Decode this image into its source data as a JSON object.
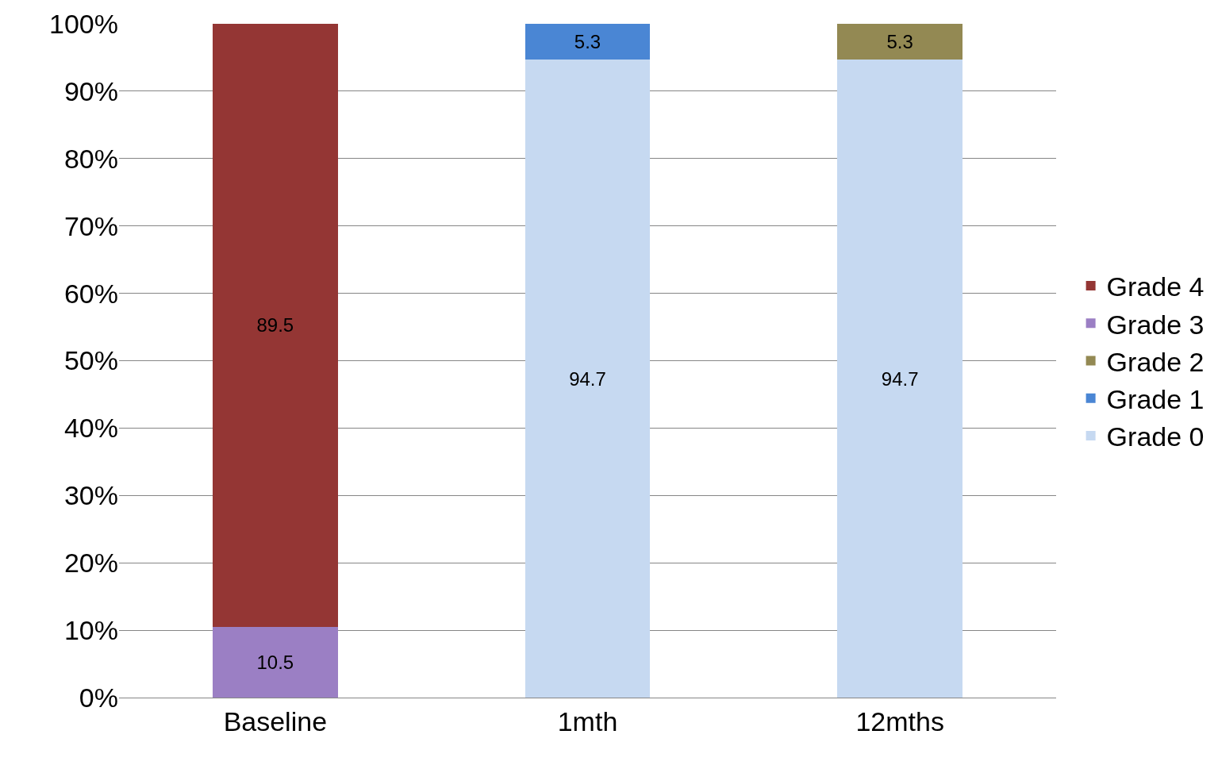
{
  "chart_data": {
    "type": "bar",
    "stacked": true,
    "categories": [
      "Baseline",
      "1mth",
      "12mths"
    ],
    "series": [
      {
        "name": "Grade 0",
        "color": "#c6d9f1",
        "values": [
          null,
          94.7,
          94.7
        ]
      },
      {
        "name": "Grade 1",
        "color": "#4a86d4",
        "values": [
          null,
          5.3,
          null
        ]
      },
      {
        "name": "Grade 2",
        "color": "#938953",
        "values": [
          null,
          null,
          5.3
        ]
      },
      {
        "name": "Grade 3",
        "color": "#9b7fc4",
        "values": [
          10.5,
          null,
          null
        ]
      },
      {
        "name": "Grade 4",
        "color": "#943634",
        "values": [
          89.5,
          null,
          null
        ]
      }
    ],
    "ylim": [
      0,
      100
    ],
    "yticks": [
      {
        "value": 0,
        "label": "0%"
      },
      {
        "value": 10,
        "label": "10%"
      },
      {
        "value": 20,
        "label": "20%"
      },
      {
        "value": 30,
        "label": "30%"
      },
      {
        "value": 40,
        "label": "40%"
      },
      {
        "value": 50,
        "label": "50%"
      },
      {
        "value": 60,
        "label": "60%"
      },
      {
        "value": 70,
        "label": "70%"
      },
      {
        "value": 80,
        "label": "80%"
      },
      {
        "value": 90,
        "label": "90%"
      },
      {
        "value": 100,
        "label": "100%"
      }
    ],
    "grid": "y",
    "legend": "right",
    "data_labels": true
  }
}
